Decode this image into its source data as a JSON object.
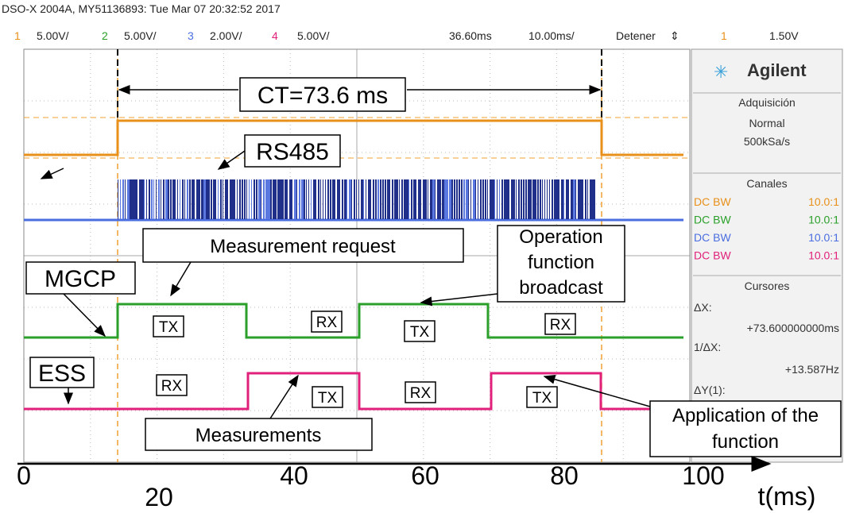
{
  "header": {
    "title": "DSO-X 2004A, MY51136893: Tue Mar 07 20:32:52 2017",
    "settings": [
      "1",
      "5.00V/",
      "2",
      "5.00V/",
      "3",
      "2.00V/",
      "4",
      "5.00V/",
      "36.60ms",
      "10.00ms/",
      "Detener",
      "⇕",
      "1",
      "1.50V"
    ]
  },
  "panel": {
    "brand": "Agilent",
    "acquisition": {
      "title": "Adquisición",
      "mode": "Normal",
      "rate": "500kSa/s"
    },
    "channels": {
      "title": "Canales",
      "rows": [
        [
          "DC BW",
          "10.0:1"
        ],
        [
          "DC BW",
          "10.0:1"
        ],
        [
          "DC BW",
          "10.0:1"
        ],
        [
          "DC BW",
          "10.0:1"
        ]
      ]
    },
    "cursors": {
      "title": "Cursores",
      "lines": [
        "ΔX:",
        "+73.600000000ms",
        "1/ΔX:",
        "+13.587Hz",
        "ΔY(1):"
      ]
    }
  },
  "annotations": {
    "cycle_time": "CT=73.6 ms",
    "bus": "RS485",
    "request": "Measurement request",
    "broadcast": [
      "Operation",
      "function",
      "broadcast"
    ],
    "mgcp": "MGCP",
    "ess": "ESS",
    "measurements": "Measurements",
    "application": [
      "Application of the",
      "function"
    ],
    "markers": [
      "TX",
      "RX",
      "TX",
      "RX",
      "RX",
      "TX",
      "RX",
      "TX"
    ]
  },
  "axis": {
    "ticks": [
      "0",
      "20",
      "40",
      "60",
      "80",
      "100"
    ],
    "label": "t(ms)"
  }
}
